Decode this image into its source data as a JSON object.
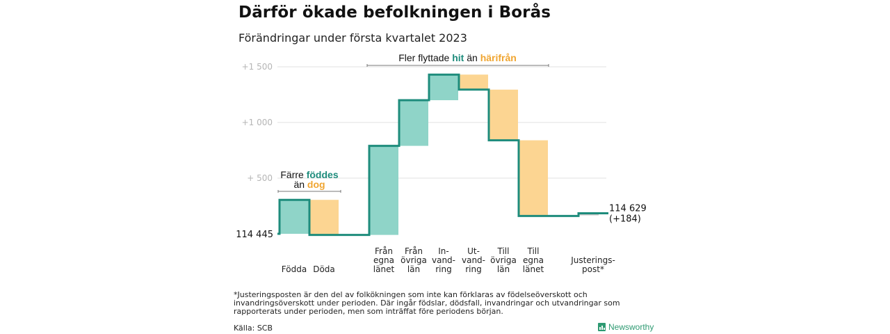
{
  "header": {
    "title": "Därför ökade befolkningen i Borås",
    "subtitle": "Förändringar under första kvartalet 2023"
  },
  "chart_data": {
    "type": "waterfall",
    "title": "Därför ökade befolkningen i Borås",
    "subtitle": "Förändringar under första kvartalet 2023",
    "start_value": 114445,
    "start_label": "114 445",
    "end_value": 114629,
    "end_label": "114 629",
    "end_change_label": "(+184)",
    "ylim": [
      0,
      1500
    ],
    "yticks": [
      {
        "value": 500,
        "label": "+ 500"
      },
      {
        "value": 1000,
        "label": "+1 000"
      },
      {
        "value": 1500,
        "label": "+1 500"
      }
    ],
    "grid": true,
    "colors": {
      "increase": "#8fd4c8",
      "decrease": "#fcd592",
      "line": "#1e8c7c",
      "hit": "#1e8c7c",
      "harifran": "#f0a530"
    },
    "steps": [
      {
        "category": "Födda",
        "lines": [
          "Födda"
        ],
        "slot": 0,
        "value": 305
      },
      {
        "category": "Döda",
        "lines": [
          "Döda"
        ],
        "slot": 1,
        "value": -315
      },
      {
        "category": "Från egna länet",
        "lines": [
          "Från",
          "egna",
          "länet"
        ],
        "slot": 3,
        "value": 800
      },
      {
        "category": "Från övriga län",
        "lines": [
          "Från",
          "övriga",
          "län"
        ],
        "slot": 4,
        "value": 410
      },
      {
        "category": "Invandring",
        "lines": [
          "In-",
          "vand-",
          "ring"
        ],
        "slot": 5,
        "value": 230
      },
      {
        "category": "Utvandring",
        "lines": [
          "Ut-",
          "vand-",
          "ring"
        ],
        "slot": 6,
        "value": -135
      },
      {
        "category": "Till övriga län",
        "lines": [
          "Till",
          "övriga",
          "län"
        ],
        "slot": 7,
        "value": -455
      },
      {
        "category": "Till egna länet",
        "lines": [
          "Till",
          "egna",
          "länet"
        ],
        "slot": 8,
        "value": -680
      },
      {
        "category": "Justeringspost*",
        "lines": [
          "Justerings-",
          "post*"
        ],
        "slot": 10,
        "value": 24
      }
    ],
    "annotations": {
      "natural": {
        "line1": "Färre ",
        "line1_highlight": "föddes",
        "line2_highlight": "dog",
        "line2": "än "
      },
      "migration": {
        "text1": "Fler flyttade ",
        "highlight1": "hit",
        "text2": " än ",
        "highlight2": "härifrån"
      }
    }
  },
  "footer": {
    "footnote": "*Justeringsposten är den del av folkökningen som inte kan förklaras av födelseöverskott och invandringsöverskott under perioden. Där ingår födslar, dödsfall, invandringar och utvandringar som rapporterats under perioden, men som inträffat före periodens början.",
    "source": "Källa: SCB",
    "brand": "Newsworthy"
  }
}
